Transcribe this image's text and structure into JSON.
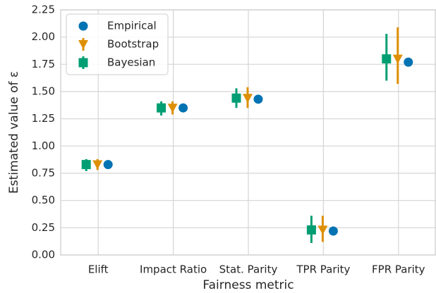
{
  "chart_data": {
    "type": "pointplot",
    "xlabel": "Fairness metric",
    "ylabel": "Estimated value of ε",
    "categories": [
      "Elift",
      "Impact Ratio",
      "Stat. Parity",
      "TPR Parity",
      "FPR Parity"
    ],
    "series": [
      {
        "name": "Empirical",
        "color": "#0173b2",
        "marker": "circle",
        "values": [
          0.83,
          1.35,
          1.43,
          0.22,
          1.77
        ]
      },
      {
        "name": "Bootstrap",
        "color": "#de8f05",
        "marker": "triangle-down",
        "values": [
          0.83,
          1.35,
          1.44,
          0.23,
          1.8
        ],
        "lower": [
          0.78,
          1.29,
          1.35,
          0.12,
          1.57
        ],
        "upper": [
          0.88,
          1.41,
          1.54,
          0.36,
          2.09
        ]
      },
      {
        "name": "Bayesian",
        "color": "#029e73",
        "marker": "square",
        "values": [
          0.83,
          1.35,
          1.44,
          0.23,
          1.8
        ],
        "lower": [
          0.77,
          1.28,
          1.35,
          0.11,
          1.6
        ],
        "upper": [
          0.88,
          1.41,
          1.53,
          0.36,
          2.03
        ]
      }
    ],
    "ylim": [
      0,
      2.25
    ],
    "yticks": [
      {
        "value": 0,
        "label": "0.00"
      },
      {
        "value": 0.25,
        "label": "0.25"
      },
      {
        "value": 0.5,
        "label": "0.50"
      },
      {
        "value": 0.75,
        "label": "0.75"
      },
      {
        "value": 1,
        "label": "1.00"
      },
      {
        "value": 1.25,
        "label": "1.25"
      },
      {
        "value": 1.5,
        "label": "1.50"
      },
      {
        "value": 1.75,
        "label": "1.75"
      },
      {
        "value": 2,
        "label": "2.00"
      },
      {
        "value": 2.25,
        "label": "2.25"
      }
    ],
    "grid": true,
    "legend": "upper left"
  }
}
